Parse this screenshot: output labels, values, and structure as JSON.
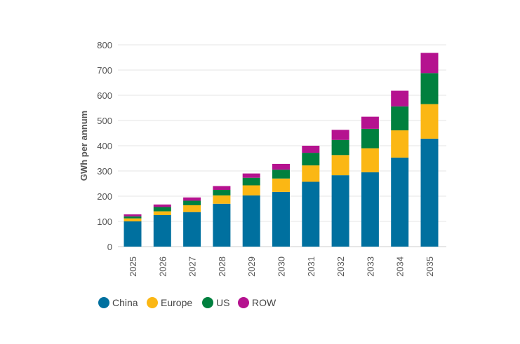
{
  "chart_data": {
    "type": "bar",
    "stacked": true,
    "title": "",
    "xlabel": "",
    "ylabel": "GWh per annum",
    "ylim": [
      0,
      800
    ],
    "yticks": [
      0,
      100,
      200,
      300,
      400,
      500,
      600,
      700,
      800
    ],
    "grid": true,
    "legend_position": "bottom-left",
    "categories": [
      "2025",
      "2026",
      "2027",
      "2028",
      "2029",
      "2030",
      "2031",
      "2032",
      "2033",
      "2034",
      "2035"
    ],
    "series": [
      {
        "name": "China",
        "color": "#00709F",
        "values": [
          100,
          125,
          137,
          170,
          203,
          217,
          257,
          283,
          295,
          353,
          428
        ]
      },
      {
        "name": "Europe",
        "color": "#FBB714",
        "values": [
          12,
          15,
          27,
          33,
          40,
          53,
          65,
          80,
          95,
          108,
          137
        ]
      },
      {
        "name": "US",
        "color": "#00803E",
        "values": [
          8,
          17,
          18,
          22,
          30,
          35,
          50,
          60,
          77,
          95,
          123
        ]
      },
      {
        "name": "ROW",
        "color": "#B5128F",
        "values": [
          8,
          10,
          13,
          15,
          17,
          23,
          28,
          40,
          48,
          62,
          80
        ]
      }
    ]
  }
}
